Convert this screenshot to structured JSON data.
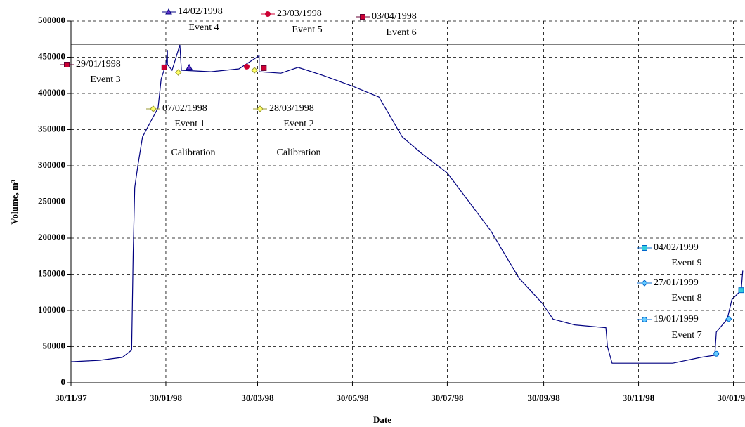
{
  "chart_data": {
    "type": "line",
    "xlabel": "Date",
    "ylabel": "Volume, m³",
    "xlim": [
      "1997-11-30",
      "1999-02-06"
    ],
    "ylim": [
      0,
      500000
    ],
    "yticks": [
      0,
      50000,
      100000,
      150000,
      200000,
      250000,
      300000,
      350000,
      400000,
      450000,
      500000
    ],
    "xticks": [
      {
        "value": "1997-11-30",
        "label": "30/11/97"
      },
      {
        "value": "1998-01-30",
        "label": "30/01/98"
      },
      {
        "value": "1998-03-30",
        "label": "30/03/98"
      },
      {
        "value": "1998-05-30",
        "label": "30/05/98"
      },
      {
        "value": "1998-07-30",
        "label": "30/07/98"
      },
      {
        "value": "1998-09-30",
        "label": "30/09/98"
      },
      {
        "value": "1998-11-30",
        "label": "30/11/98"
      },
      {
        "value": "1999-01-30",
        "label": "30/01/99"
      }
    ],
    "grid": true,
    "hline": 468000,
    "color": "#000080",
    "x": [
      "1997-11-30",
      "1997-12-18",
      "1998-01-02",
      "1998-01-08",
      "1998-01-09",
      "1998-01-10",
      "1998-01-12",
      "1998-01-15",
      "1998-01-20",
      "1998-01-25",
      "1998-01-27",
      "1998-01-30",
      "1998-01-31",
      "1998-01-31",
      "1998-02-03",
      "1998-02-08",
      "1998-02-08",
      "1998-02-09",
      "1998-02-28",
      "1998-03-18",
      "1998-03-31",
      "1998-03-31",
      "1998-04-14",
      "1998-04-25",
      "1998-05-11",
      "1998-05-30",
      "1998-06-16",
      "1998-07-01",
      "1998-07-13",
      "1998-07-30",
      "1998-08-27",
      "1998-09-14",
      "1998-09-29",
      "1998-10-06",
      "1998-10-20",
      "1998-11-09",
      "1998-11-10",
      "1998-11-13",
      "1998-11-29",
      "1998-12-22",
      "1999-01-09",
      "1999-01-18",
      "1999-01-19",
      "1999-01-26",
      "1999-01-29",
      "1999-02-04",
      "1999-02-05"
    ],
    "values": [
      29000,
      31000,
      35000,
      45000,
      180000,
      270000,
      300000,
      340000,
      360000,
      380000,
      420000,
      440000,
      460000,
      440000,
      432000,
      467000,
      467000,
      432000,
      430000,
      434000,
      452000,
      430000,
      428000,
      436000,
      425000,
      410000,
      395000,
      340000,
      318000,
      290000,
      210000,
      145000,
      110000,
      88000,
      80000,
      76000,
      50000,
      27000,
      27000,
      27000,
      35000,
      38000,
      70000,
      88000,
      115000,
      128000,
      155000
    ],
    "events": [
      {
        "name": "07/02/1998",
        "label": "Event 1",
        "x": "1998-02-07",
        "value": 429000,
        "marker": "diamond",
        "color": "#ffff66",
        "edge": "#999933"
      },
      {
        "name": "28/03/1998",
        "label": "Event 2",
        "x": "1998-03-28",
        "value": 432000,
        "marker": "diamond",
        "color": "#ffff66",
        "edge": "#999933"
      },
      {
        "name": "29/01/1998",
        "label": "Event 3",
        "x": "1998-01-29",
        "value": 436000,
        "marker": "square",
        "color": "#cc0033",
        "edge": "#660033"
      },
      {
        "name": "14/02/1998",
        "label": "Event 4",
        "x": "1998-02-14",
        "value": 436000,
        "marker": "triangle",
        "color": "#6633cc",
        "edge": "#000080"
      },
      {
        "name": "23/03/1998",
        "label": "Event 5",
        "x": "1998-03-23",
        "value": 437000,
        "marker": "circle",
        "color": "#cc0033",
        "edge": "#cc0033"
      },
      {
        "name": "03/04/1998",
        "label": "Event 6",
        "x": "1998-04-03",
        "value": 435000,
        "marker": "square",
        "color": "#cc0033",
        "edge": "#660033"
      },
      {
        "name": "19/01/1999",
        "label": "Event 7",
        "x": "1999-01-19",
        "value": 40000,
        "marker": "circle",
        "color": "#66ccff",
        "edge": "#0066cc"
      },
      {
        "name": "27/01/1999",
        "label": "Event 8",
        "x": "1999-01-27",
        "value": 88000,
        "marker": "diamond",
        "color": "#66ccff",
        "edge": "#0066cc"
      },
      {
        "name": "04/02/1999",
        "label": "Event 9",
        "x": "1999-02-04",
        "value": 128000,
        "marker": "square",
        "color": "#33ccdd",
        "edge": "#0066cc"
      }
    ],
    "annotations": [
      "Calibration",
      "Calibration"
    ]
  }
}
